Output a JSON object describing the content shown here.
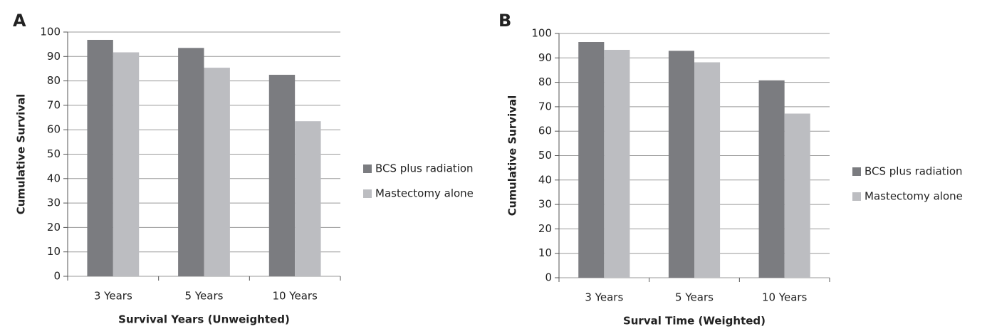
{
  "chart_data": [
    {
      "type": "bar",
      "panel": "A",
      "x_label": "Survival Years (Unweighted)",
      "y_label": "Cumulative Survival",
      "categories": [
        "3 Years",
        "5 Years",
        "10 Years"
      ],
      "series": [
        {
          "name": "BCS plus radiation",
          "color": "#7b7c80",
          "values": [
            96.8,
            93.5,
            82.5
          ]
        },
        {
          "name": "Mastectomy alone",
          "color": "#bcbdc1",
          "values": [
            91.7,
            85.4,
            63.5
          ]
        }
      ],
      "ylim": [
        0,
        100
      ],
      "yticks": [
        0,
        10,
        20,
        30,
        40,
        50,
        60,
        70,
        80,
        90,
        100
      ],
      "grid": true,
      "legend": "right"
    },
    {
      "type": "bar",
      "panel": "B",
      "x_label": "Surval Time (Weighted)",
      "y_label": "Cumulative Survival",
      "categories": [
        "3 Years",
        "5 Years",
        "10 Years"
      ],
      "series": [
        {
          "name": "BCS plus radiation",
          "color": "#7b7c80",
          "values": [
            96.5,
            92.9,
            80.8
          ]
        },
        {
          "name": "Mastectomy alone",
          "color": "#bcbdc1",
          "values": [
            93.3,
            88.2,
            67.2
          ]
        }
      ],
      "ylim": [
        0,
        100
      ],
      "yticks": [
        0,
        10,
        20,
        30,
        40,
        50,
        60,
        70,
        80,
        90,
        100
      ],
      "grid": true,
      "legend": "right"
    }
  ]
}
